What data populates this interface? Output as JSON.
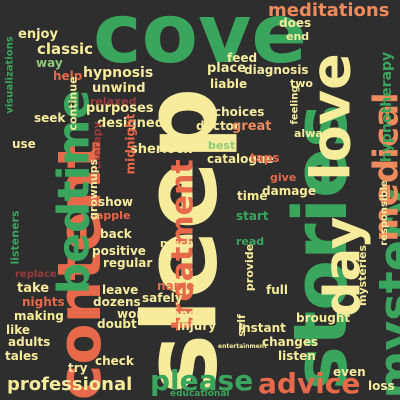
{
  "colors": {
    "background": "#2e2e2e",
    "cream": "#f7ec9c",
    "green": "#3aa55c",
    "lightgreen": "#8fc97a",
    "salmon": "#e8684a",
    "orange": "#ee8a5b",
    "darkred": "#9b3a3a",
    "teal": "#4b9b7a"
  },
  "words": [
    {
      "text": "sleep",
      "color": "cream",
      "rot": true
    },
    {
      "text": "cove",
      "color": "green",
      "rot": false
    },
    {
      "text": "stories",
      "color": "green",
      "rot": true
    },
    {
      "text": "content",
      "color": "salmon",
      "rot": true
    },
    {
      "text": "bedtime",
      "color": "green",
      "rot": true
    },
    {
      "text": "love",
      "color": "cream",
      "rot": true
    },
    {
      "text": "day",
      "color": "cream",
      "rot": true
    },
    {
      "text": "mystery",
      "color": "green",
      "rot": true
    },
    {
      "text": "medical",
      "color": "orange",
      "rot": true
    },
    {
      "text": "treatment",
      "color": "salmon",
      "rot": true
    },
    {
      "text": "advice",
      "color": "salmon",
      "rot": false
    },
    {
      "text": "please",
      "color": "green",
      "rot": false
    },
    {
      "text": "meditations",
      "color": "orange",
      "rot": false
    },
    {
      "text": "professional",
      "color": "cream",
      "rot": false
    },
    {
      "text": "hypnotherapy",
      "color": "green",
      "rot": true
    },
    {
      "text": "educational",
      "color": "green",
      "rot": false
    },
    {
      "text": "classic",
      "color": "cream",
      "rot": false
    },
    {
      "text": "hypnosis",
      "color": "cream",
      "rot": false
    },
    {
      "text": "enjoy",
      "color": "cream",
      "rot": false
    },
    {
      "text": "way",
      "color": "lightgreen",
      "rot": false
    },
    {
      "text": "seek",
      "color": "cream",
      "rot": false
    },
    {
      "text": "help",
      "color": "salmon",
      "rot": false
    },
    {
      "text": "unwind",
      "color": "cream",
      "rot": false
    },
    {
      "text": "relaxed",
      "color": "darkred",
      "rot": false
    },
    {
      "text": "purposes",
      "color": "cream",
      "rot": false
    },
    {
      "text": "designed",
      "color": "cream",
      "rot": false
    },
    {
      "text": "doctor",
      "color": "cream",
      "rot": false
    },
    {
      "text": "choices",
      "color": "cream",
      "rot": false
    },
    {
      "text": "great",
      "color": "orange",
      "rot": false
    },
    {
      "text": "best",
      "color": "lightgreen",
      "rot": false
    },
    {
      "text": "catalogue",
      "color": "cream",
      "rot": false
    },
    {
      "text": "sherlock",
      "color": "cream",
      "rot": false
    },
    {
      "text": "therapy",
      "color": "darkred",
      "rot": true
    },
    {
      "text": "midnight",
      "color": "salmon",
      "rot": true
    },
    {
      "text": "show",
      "color": "cream",
      "rot": false
    },
    {
      "text": "apple",
      "color": "salmon",
      "rot": false
    },
    {
      "text": "back",
      "color": "cream",
      "rot": false
    },
    {
      "text": "positive",
      "color": "cream",
      "rot": false
    },
    {
      "text": "regular",
      "color": "cream",
      "rot": false
    },
    {
      "text": "much",
      "color": "cream",
      "rot": false
    },
    {
      "text": "name",
      "color": "salmon",
      "rot": false
    },
    {
      "text": "leave",
      "color": "cream",
      "rot": false
    },
    {
      "text": "safely",
      "color": "cream",
      "rot": false
    },
    {
      "text": "dozens",
      "color": "cream",
      "rot": false
    },
    {
      "text": "wonderland",
      "color": "cream",
      "rot": false
    },
    {
      "text": "doubt",
      "color": "cream",
      "rot": false
    },
    {
      "text": "check",
      "color": "cream",
      "rot": false
    },
    {
      "text": "injury",
      "color": "cream",
      "rot": false
    },
    {
      "text": "take",
      "color": "cream",
      "rot": false
    },
    {
      "text": "nights",
      "color": "salmon",
      "rot": false
    },
    {
      "text": "making",
      "color": "cream",
      "rot": false
    },
    {
      "text": "like",
      "color": "cream",
      "rot": false
    },
    {
      "text": "adults",
      "color": "cream",
      "rot": false
    },
    {
      "text": "tales",
      "color": "cream",
      "rot": false
    },
    {
      "text": "try",
      "color": "cream",
      "rot": false
    },
    {
      "text": "replace",
      "color": "darkred",
      "rot": false
    },
    {
      "text": "listeners",
      "color": "green",
      "rot": true
    },
    {
      "text": "visualizations",
      "color": "green",
      "rot": true
    },
    {
      "text": "grownups",
      "color": "cream",
      "rot": true
    },
    {
      "text": "use",
      "color": "cream",
      "rot": false
    },
    {
      "text": "feed",
      "color": "cream",
      "rot": false
    },
    {
      "text": "place",
      "color": "cream",
      "rot": false
    },
    {
      "text": "diagnosis",
      "color": "cream",
      "rot": false
    },
    {
      "text": "liable",
      "color": "cream",
      "rot": false
    },
    {
      "text": "does",
      "color": "cream",
      "rot": false
    },
    {
      "text": "end",
      "color": "cream",
      "rot": false
    },
    {
      "text": "two",
      "color": "cream",
      "rot": false
    },
    {
      "text": "feeling",
      "color": "cream",
      "rot": true
    },
    {
      "text": "always",
      "color": "cream",
      "rot": false
    },
    {
      "text": "taps",
      "color": "salmon",
      "rot": false
    },
    {
      "text": "give",
      "color": "salmon",
      "rot": false
    },
    {
      "text": "damage",
      "color": "cream",
      "rot": false
    },
    {
      "text": "time",
      "color": "cream",
      "rot": false
    },
    {
      "text": "start",
      "color": "green",
      "rot": false
    },
    {
      "text": "read",
      "color": "green",
      "rot": false
    },
    {
      "text": "provide",
      "color": "cream",
      "rot": true
    },
    {
      "text": "full",
      "color": "cream",
      "rot": false
    },
    {
      "text": "self",
      "color": "cream",
      "rot": true
    },
    {
      "text": "instant",
      "color": "cream",
      "rot": false
    },
    {
      "text": "changes",
      "color": "cream",
      "rot": false
    },
    {
      "text": "listen",
      "color": "cream",
      "rot": false
    },
    {
      "text": "brought",
      "color": "cream",
      "rot": false
    },
    {
      "text": "mysteries",
      "color": "cream",
      "rot": true
    },
    {
      "text": "even",
      "color": "cream",
      "rot": false
    },
    {
      "text": "loss",
      "color": "cream",
      "rot": false
    },
    {
      "text": "responsible",
      "color": "cream",
      "rot": true
    },
    {
      "text": "continue",
      "color": "cream",
      "rot": true
    },
    {
      "text": "entertainment",
      "color": "cream",
      "rot": false
    }
  ]
}
